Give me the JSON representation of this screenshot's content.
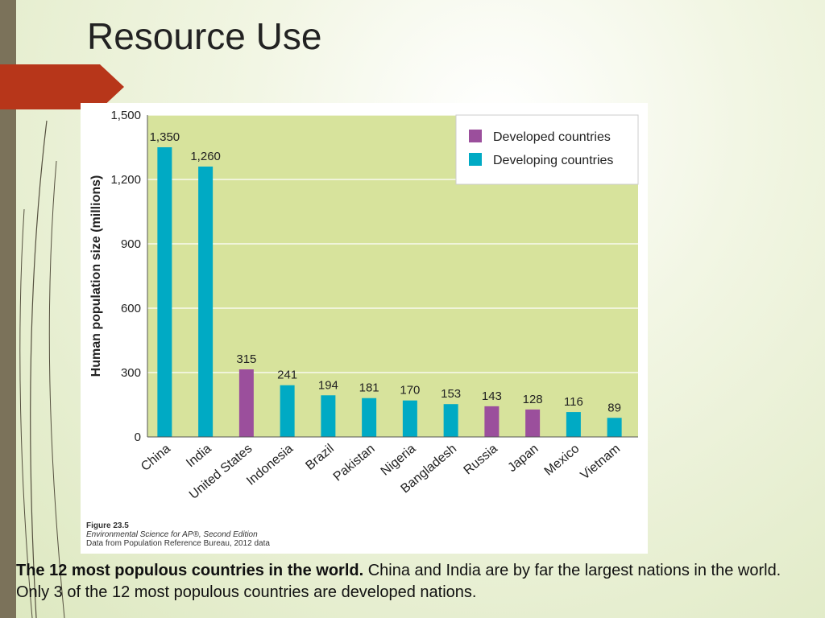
{
  "slide": {
    "title": "Resource Use",
    "caption_bold": "The 12 most populous countries in the world.",
    "caption_rest": " China and India are by far the largest nations in the world. Only 3 of the 12 most populous countries are developed nations."
  },
  "figure": {
    "number": "Figure 23.5",
    "source_line1": "Environmental Science for AP®, Second Edition",
    "source_line2": "Data from Population Reference Bureau, 2012 data"
  },
  "colors": {
    "plot_bg": "#d7e39c",
    "developed": "#9b4f9c",
    "developing": "#00aac4",
    "accent": "#b7361a"
  },
  "chart_data": {
    "type": "bar",
    "title": "",
    "xlabel": "",
    "ylabel": "Human population size (millions)",
    "ylim": [
      0,
      1500
    ],
    "yticks": [
      0,
      300,
      600,
      900,
      1200,
      1500
    ],
    "ytick_labels": [
      "0",
      "300",
      "600",
      "900",
      "1,200",
      "1,500"
    ],
    "grid": true,
    "legend_position": "top-right",
    "legend": [
      {
        "name": "Developed countries",
        "group": "developed"
      },
      {
        "name": "Developing countries",
        "group": "developing"
      }
    ],
    "categories": [
      "China",
      "India",
      "United States",
      "Indonesia",
      "Brazil",
      "Pakistan",
      "Nigeria",
      "Bangladesh",
      "Russia",
      "Japan",
      "Mexico",
      "Vietnam"
    ],
    "values": [
      1350,
      1260,
      315,
      241,
      194,
      181,
      170,
      153,
      143,
      128,
      116,
      89
    ],
    "value_labels": [
      "1,350",
      "1,260",
      "315",
      "241",
      "194",
      "181",
      "170",
      "153",
      "143",
      "128",
      "116",
      "89"
    ],
    "groups": [
      "developing",
      "developing",
      "developed",
      "developing",
      "developing",
      "developing",
      "developing",
      "developing",
      "developed",
      "developed",
      "developing",
      "developing"
    ]
  }
}
